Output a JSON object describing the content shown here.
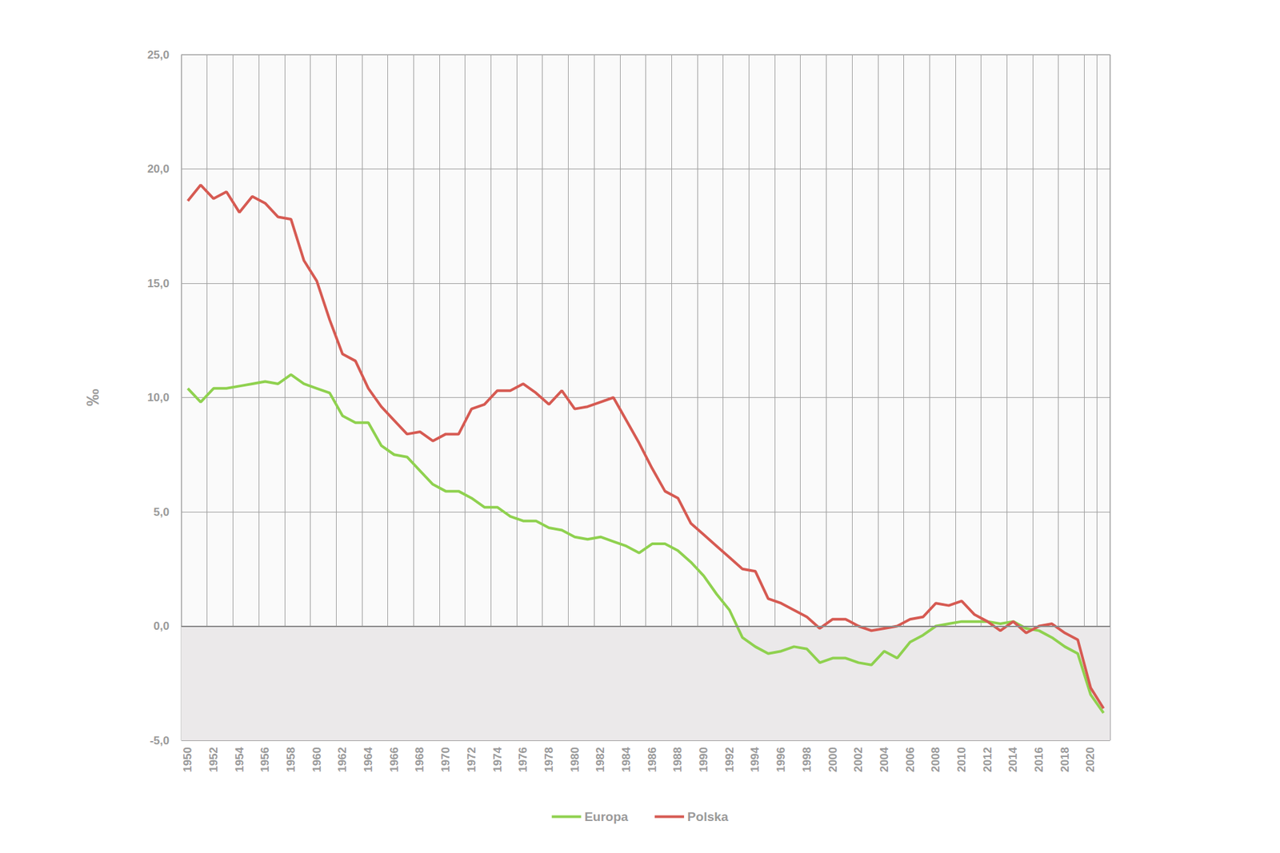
{
  "chart_data": {
    "type": "line",
    "y_label": "‰",
    "categories": [
      "1950",
      null,
      "1952",
      null,
      "1954",
      null,
      "1956",
      null,
      "1958",
      null,
      "1960",
      null,
      "1962",
      null,
      "1964",
      null,
      "1966",
      null,
      "1968",
      null,
      "1970",
      null,
      "1972",
      null,
      "1974",
      null,
      "1976",
      null,
      "1978",
      null,
      "1980",
      null,
      "1982",
      null,
      "1984",
      null,
      "1986",
      null,
      "1988",
      null,
      "1990",
      null,
      "1992",
      null,
      "1994",
      null,
      "1996",
      null,
      "1998",
      null,
      "2000",
      null,
      "2002",
      null,
      "2004",
      null,
      "2006",
      null,
      "2008",
      null,
      "2010",
      null,
      "2012",
      null,
      "2014",
      null,
      "2016",
      null,
      "2018",
      null,
      "2020",
      null
    ],
    "series": [
      {
        "name": "Europa",
        "color": "#8fd14f",
        "values": [
          10.4,
          9.8,
          10.4,
          10.4,
          10.5,
          10.6,
          10.7,
          10.6,
          11.0,
          10.6,
          10.4,
          10.2,
          9.2,
          8.9,
          8.9,
          7.9,
          7.5,
          7.4,
          6.8,
          6.2,
          5.9,
          5.9,
          5.6,
          5.2,
          5.2,
          4.8,
          4.6,
          4.6,
          4.3,
          4.2,
          3.9,
          3.8,
          3.9,
          3.7,
          3.5,
          3.2,
          3.6,
          3.6,
          3.3,
          2.8,
          2.2,
          1.4,
          0.7,
          -0.5,
          -0.9,
          -1.2,
          -1.1,
          -0.9,
          -1.0,
          -1.6,
          -1.4,
          -1.4,
          -1.6,
          -1.7,
          -1.1,
          -1.4,
          -0.7,
          -0.4,
          0.0,
          0.1,
          0.2,
          0.2,
          0.2,
          0.1,
          0.2,
          -0.1,
          -0.2,
          -0.5,
          -0.9,
          -1.2,
          -3.0,
          -3.8
        ]
      },
      {
        "name": "Polska",
        "color": "#d65a52",
        "values": [
          18.6,
          19.3,
          18.7,
          19.0,
          18.1,
          18.8,
          18.5,
          17.9,
          17.8,
          16.0,
          15.1,
          13.4,
          11.9,
          11.6,
          10.4,
          9.6,
          9.0,
          8.4,
          8.5,
          8.1,
          8.4,
          8.4,
          9.5,
          9.7,
          10.3,
          10.3,
          10.6,
          10.2,
          9.7,
          10.3,
          9.5,
          9.6,
          9.8,
          10.0,
          9.0,
          8.0,
          6.9,
          5.9,
          5.6,
          4.5,
          4.0,
          3.5,
          3.0,
          2.5,
          2.4,
          1.2,
          1.0,
          0.7,
          0.4,
          -0.1,
          0.3,
          0.3,
          0.0,
          -0.2,
          -0.1,
          0.0,
          0.3,
          0.4,
          1.0,
          0.9,
          1.1,
          0.5,
          0.2,
          -0.2,
          0.2,
          -0.3,
          0.0,
          0.1,
          -0.3,
          -0.6,
          -2.7,
          -3.6
        ]
      }
    ],
    "ylim": [
      -5,
      25
    ],
    "yticks": [
      {
        "value": -5,
        "label": "-5,0"
      },
      {
        "value": 0,
        "label": "0,0"
      },
      {
        "value": 5,
        "label": "5,0"
      },
      {
        "value": 10,
        "label": "10,0"
      },
      {
        "value": 15,
        "label": "15,0"
      },
      {
        "value": 20,
        "label": "20,0"
      },
      {
        "value": 25,
        "label": "25,0"
      }
    ],
    "grid": true,
    "legend": "bottom"
  }
}
